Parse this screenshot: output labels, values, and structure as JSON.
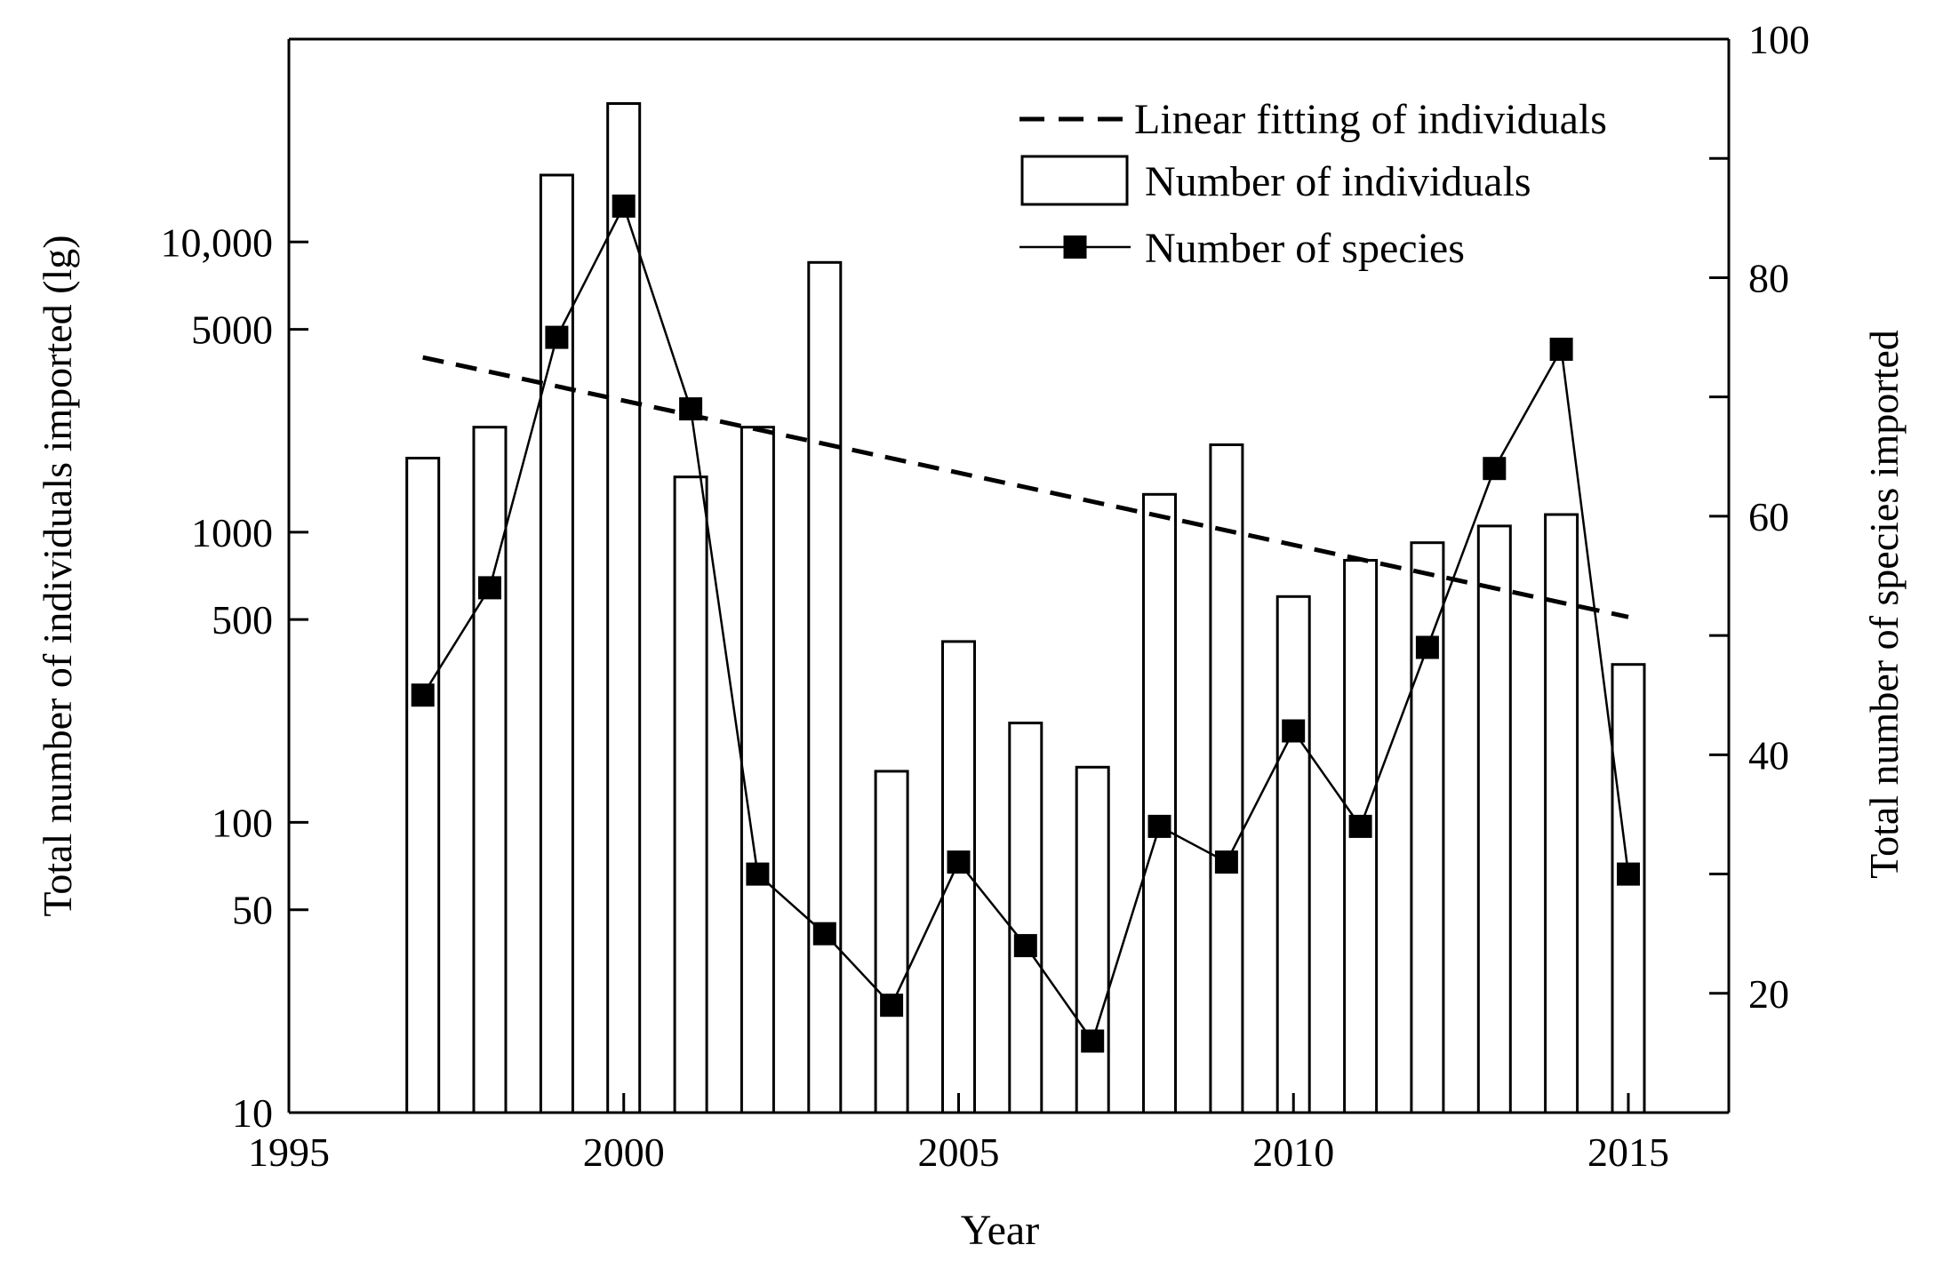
{
  "chart_data": {
    "type": "bar",
    "xlabel": "Year",
    "ylabel_left": "Total number of individuals imported (lg)",
    "ylabel_right": "Total number of species imported",
    "x_ticks": [
      "1995",
      "2000",
      "2005",
      "2010",
      "2015"
    ],
    "x_tick_values": [
      1995,
      2000,
      2005,
      2010,
      2015
    ],
    "x_range": [
      1995,
      2016.5
    ],
    "y_left_scale": "log",
    "y_left_range": [
      10,
      50000
    ],
    "y_left_ticks": [
      10,
      50,
      100,
      500,
      1000,
      5000,
      10000
    ],
    "y_left_tick_labels": [
      "10",
      "50",
      "100",
      "500",
      "1000",
      "5000",
      "10,000"
    ],
    "y_right_range": [
      10,
      100
    ],
    "y_right_ticks": [
      20,
      40,
      60,
      80,
      100
    ],
    "y_right_tick_labels": [
      "20",
      "40",
      "60",
      "80",
      "100"
    ],
    "years": [
      1997,
      1998,
      1999,
      2000,
      2001,
      2002,
      2003,
      2004,
      2005,
      2006,
      2007,
      2008,
      2009,
      2010,
      2011,
      2012,
      2013,
      2014,
      2015
    ],
    "series": [
      {
        "name": "Number of individuals",
        "kind": "bar",
        "axis": "left",
        "values": [
          1800,
          2300,
          17000,
          30000,
          1550,
          2300,
          8500,
          150,
          420,
          220,
          155,
          1350,
          2000,
          600,
          800,
          920,
          1050,
          1150,
          350
        ]
      },
      {
        "name": "Number of species",
        "kind": "line-marker",
        "axis": "right",
        "values": [
          45,
          54,
          75,
          86,
          69,
          30,
          25,
          19,
          31,
          24,
          16,
          34,
          31,
          42,
          34,
          49,
          64,
          74,
          30
        ]
      },
      {
        "name": "Linear fitting of individuals",
        "kind": "dashed-line",
        "axis": "left",
        "x": [
          1997,
          2015
        ],
        "values": [
          4000,
          510
        ]
      }
    ],
    "legend": {
      "placement": "top-right",
      "entries": [
        "Linear fitting of individuals",
        "Number of individuals",
        "Number of species"
      ]
    }
  }
}
